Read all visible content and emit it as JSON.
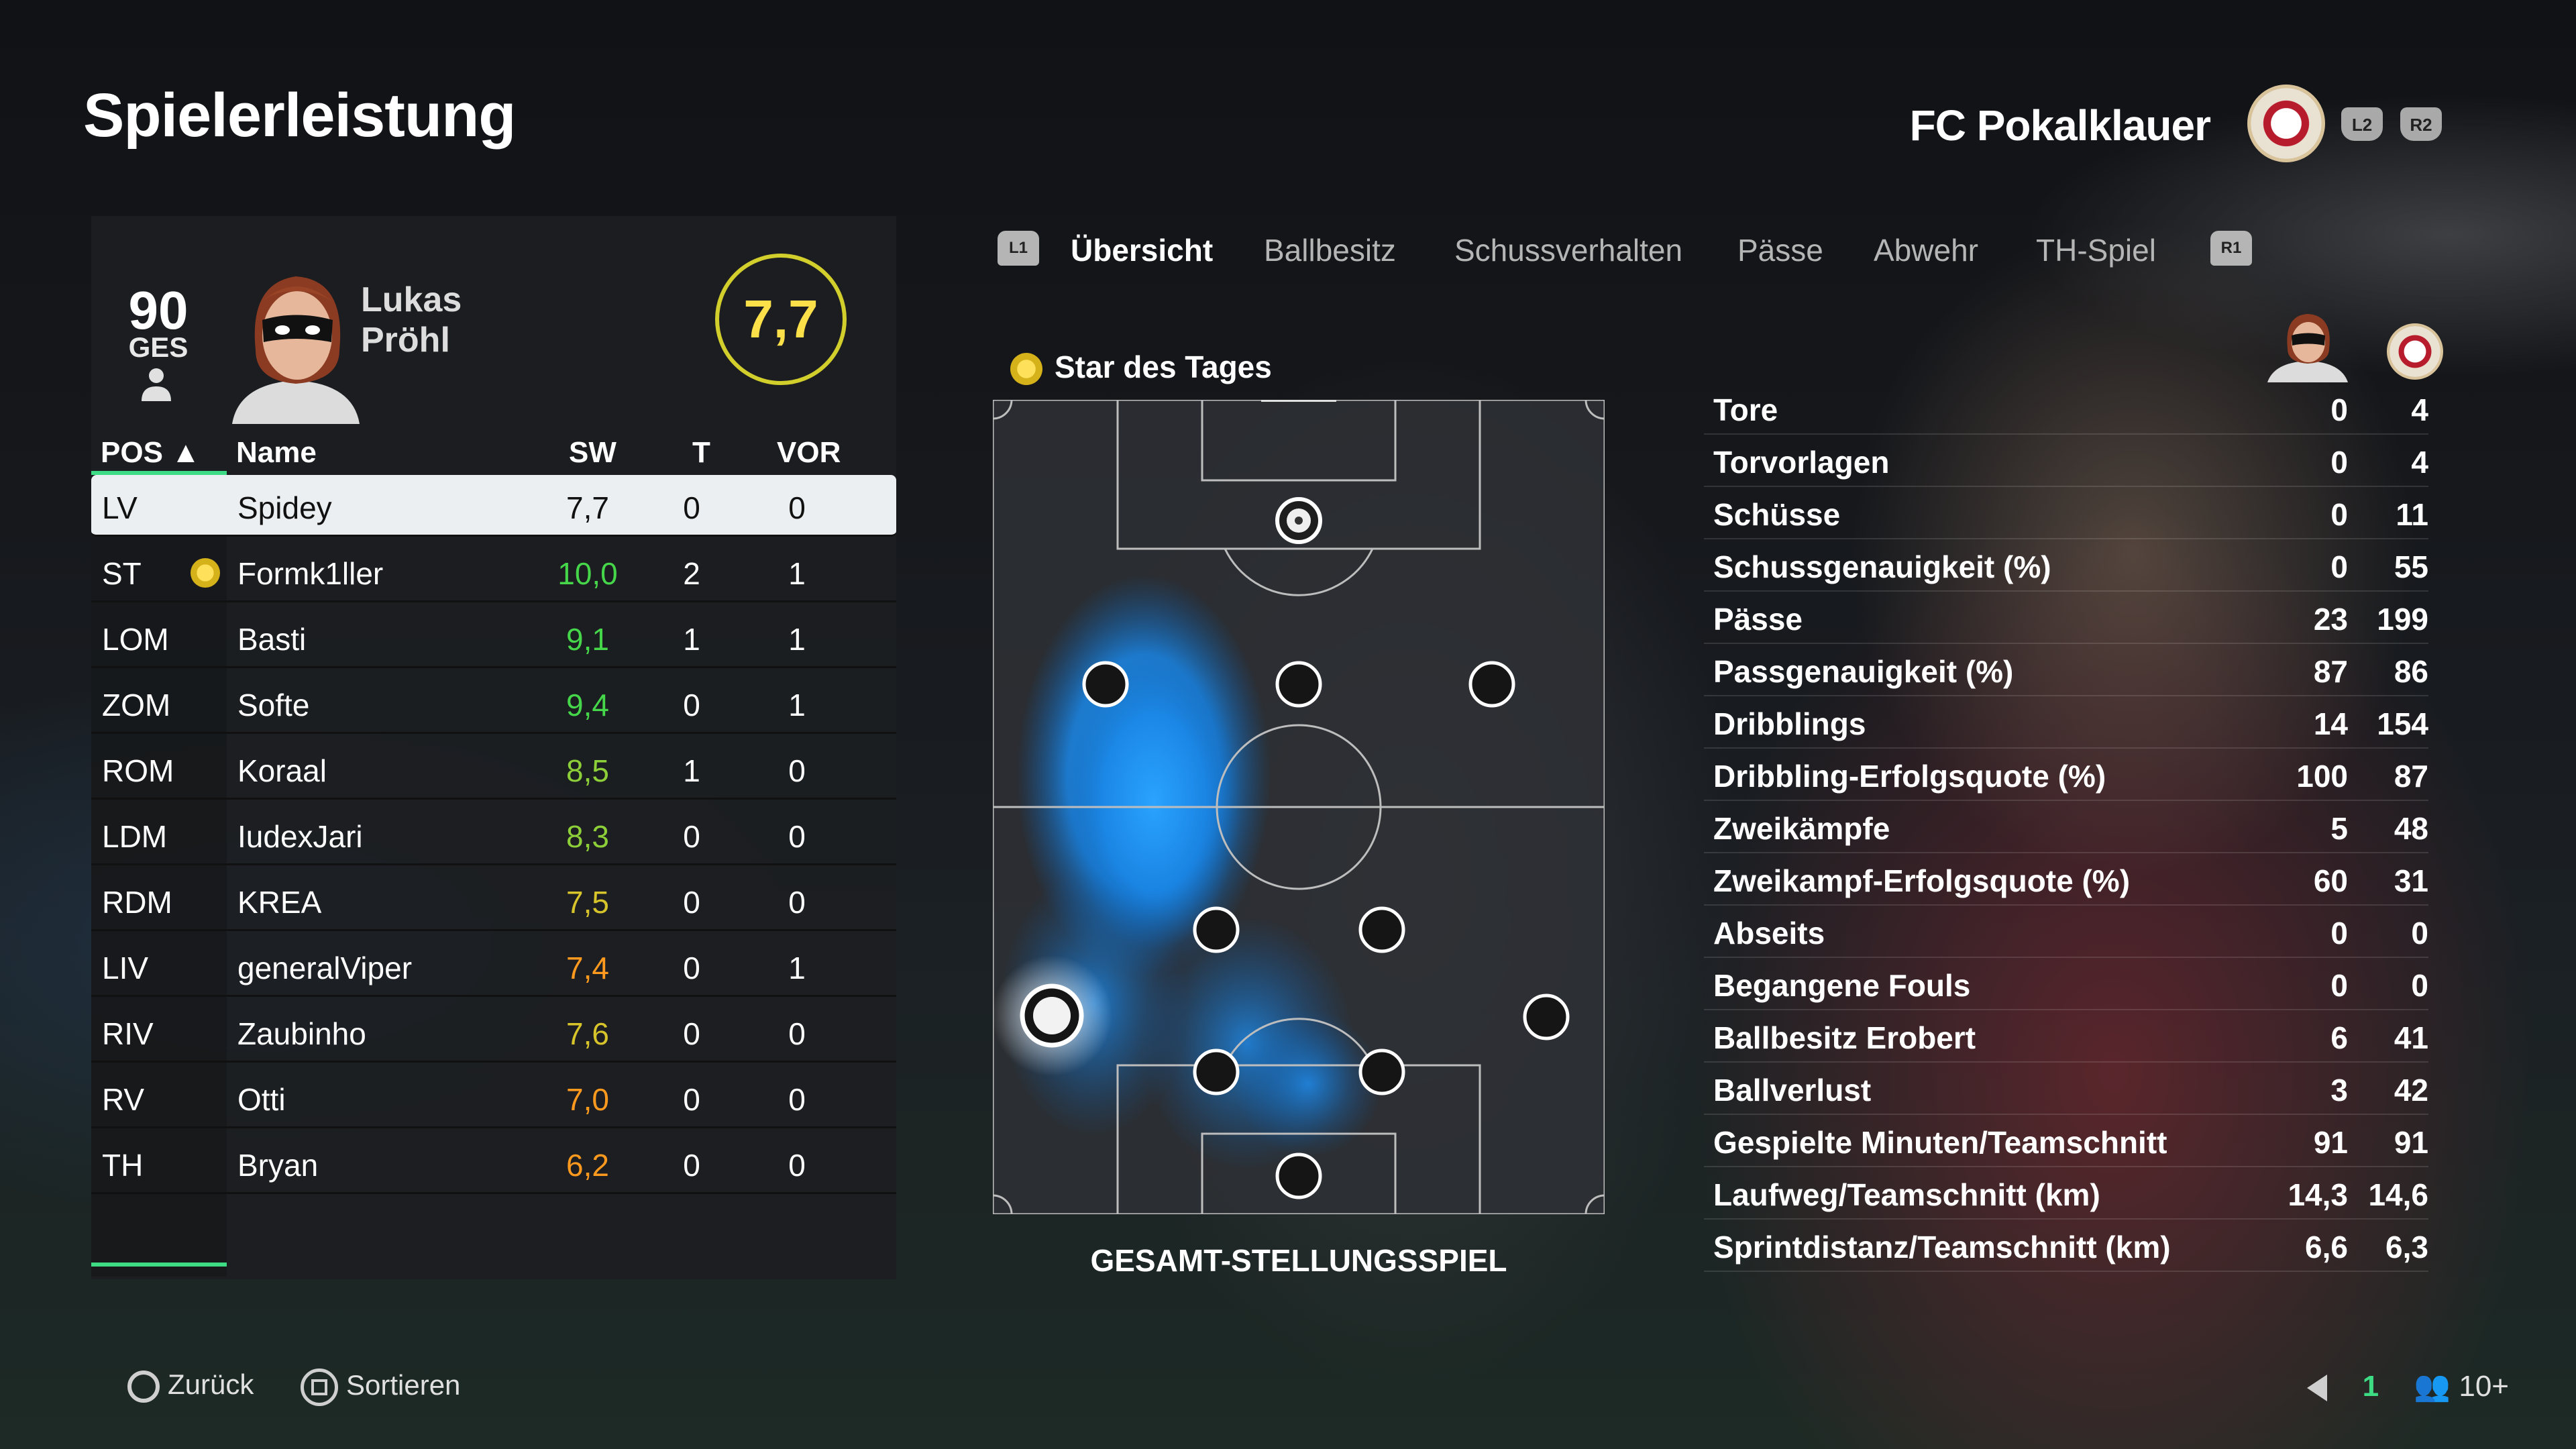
{
  "header": {
    "title": "Spielerleistung",
    "club_name": "FC Pokalklauer",
    "shoulder_buttons": [
      "L2",
      "R2"
    ]
  },
  "player_card": {
    "overall": "90",
    "overall_label": "GES",
    "first_name": "Lukas",
    "last_name": "Pröhl",
    "match_rating": "7,7"
  },
  "table": {
    "headers": {
      "pos": "POS ▲",
      "name": "Name",
      "sw": "SW",
      "t": "T",
      "vor": "VOR"
    },
    "rows": [
      {
        "pos": "LV",
        "name": "Spidey",
        "sw": "7,7",
        "t": "0",
        "vor": "0",
        "selected": true
      },
      {
        "pos": "ST",
        "name": "Formk1ller",
        "sw": "10,0",
        "t": "2",
        "vor": "1",
        "star": true
      },
      {
        "pos": "LOM",
        "name": "Basti",
        "sw": "9,1",
        "t": "1",
        "vor": "1"
      },
      {
        "pos": "ZOM",
        "name": "Softe",
        "sw": "9,4",
        "t": "0",
        "vor": "1"
      },
      {
        "pos": "ROM",
        "name": "Koraal",
        "sw": "8,5",
        "t": "1",
        "vor": "0"
      },
      {
        "pos": "LDM",
        "name": "IudexJari",
        "sw": "8,3",
        "t": "0",
        "vor": "0"
      },
      {
        "pos": "RDM",
        "name": "KREA",
        "sw": "7,5",
        "t": "0",
        "vor": "0"
      },
      {
        "pos": "LIV",
        "name": "generalViper",
        "sw": "7,4",
        "t": "0",
        "vor": "1"
      },
      {
        "pos": "RIV",
        "name": "Zaubinho",
        "sw": "7,6",
        "t": "0",
        "vor": "0"
      },
      {
        "pos": "RV",
        "name": "Otti",
        "sw": "7,0",
        "t": "0",
        "vor": "0"
      },
      {
        "pos": "TH",
        "name": "Bryan",
        "sw": "6,2",
        "t": "0",
        "vor": "0"
      }
    ]
  },
  "tabs": {
    "left_glyph": "L1",
    "right_glyph": "R1",
    "items": [
      {
        "label": "Übersicht",
        "active": true
      },
      {
        "label": "Ballbesitz"
      },
      {
        "label": "Schussverhalten"
      },
      {
        "label": "Pässe"
      },
      {
        "label": "Abwehr"
      },
      {
        "label": "TH-Spiel"
      }
    ]
  },
  "heatmap": {
    "star_label": "Star des Tages",
    "caption": "GESAMT-STELLUNGSSPIEL"
  },
  "stats": [
    {
      "label": "Tore",
      "player": "0",
      "team": "4"
    },
    {
      "label": "Torvorlagen",
      "player": "0",
      "team": "4"
    },
    {
      "label": "Schüsse",
      "player": "0",
      "team": "11"
    },
    {
      "label": "Schussgenauigkeit (%)",
      "player": "0",
      "team": "55"
    },
    {
      "label": "Pässe",
      "player": "23",
      "team": "199"
    },
    {
      "label": "Passgenauigkeit (%)",
      "player": "87",
      "team": "86"
    },
    {
      "label": "Dribblings",
      "player": "14",
      "team": "154"
    },
    {
      "label": "Dribbling-Erfolgsquote (%)",
      "player": "100",
      "team": "87"
    },
    {
      "label": "Zweikämpfe",
      "player": "5",
      "team": "48"
    },
    {
      "label": "Zweikampf-Erfolgsquote (%)",
      "player": "60",
      "team": "31"
    },
    {
      "label": "Abseits",
      "player": "0",
      "team": "0"
    },
    {
      "label": "Begangene Fouls",
      "player": "0",
      "team": "0"
    },
    {
      "label": "Ballbesitz Erobert",
      "player": "6",
      "team": "41"
    },
    {
      "label": "Ballverlust",
      "player": "3",
      "team": "42"
    },
    {
      "label": "Gespielte Minuten/Teamschnitt",
      "player": "91",
      "team": "91"
    },
    {
      "label": "Laufweg/Teamschnitt (km)",
      "player": "14,3",
      "team": "14,6"
    },
    {
      "label": "Sprintdistanz/Teamschnitt (km)",
      "player": "6,6",
      "team": "6,3"
    }
  ],
  "footer": {
    "back_label": "Zurück",
    "sort_label": "Sortieren",
    "status_count": "1",
    "players_count": "10+"
  }
}
